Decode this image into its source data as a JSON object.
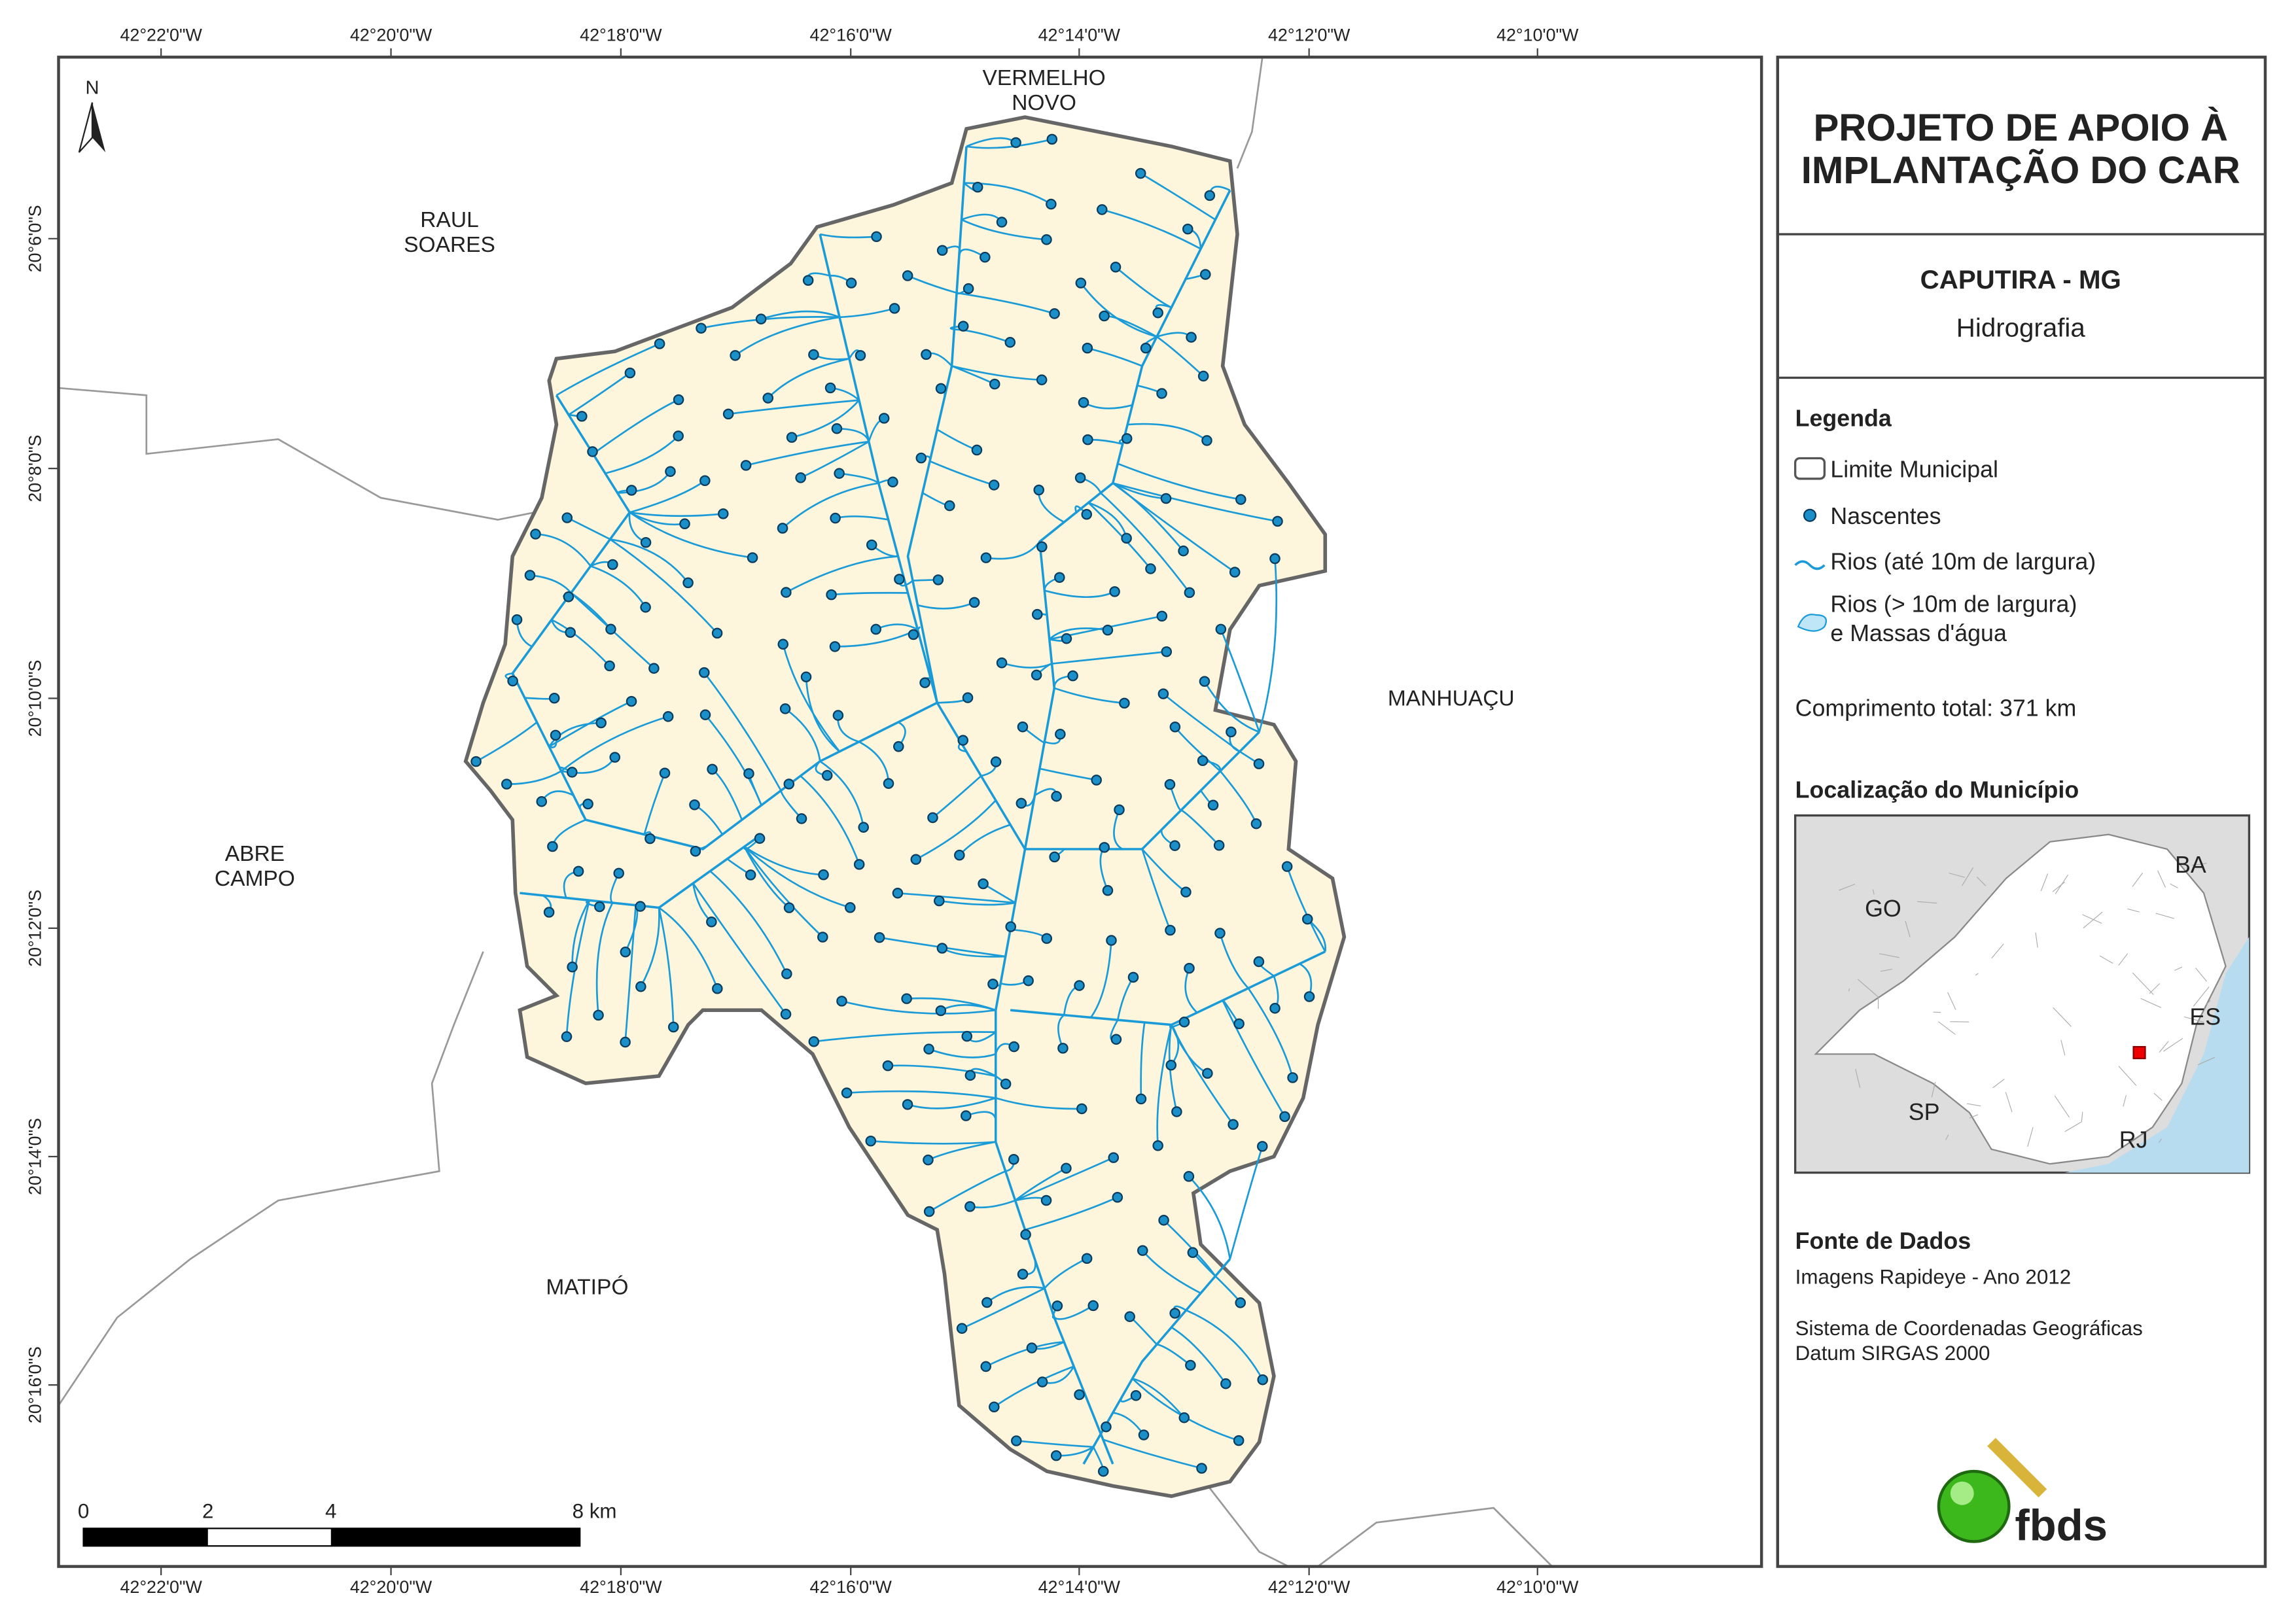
{
  "map": {
    "x_labels": [
      "42°22'0\"W",
      "42°20'0\"W",
      "42°18'0\"W",
      "42°16'0\"W",
      "42°14'0\"W",
      "42°12'0\"W",
      "42°10'0\"W"
    ],
    "y_labels": [
      "20°6'0\"S",
      "20°8'0\"S",
      "20°10'0\"S",
      "20°12'0\"S",
      "20°14'0\"S",
      "20°16'0\"S"
    ],
    "north": "N",
    "places": [
      {
        "lines": [
          "VERMELHO",
          "NOVO"
        ]
      },
      {
        "lines": [
          "RAUL",
          "SOARES"
        ]
      },
      {
        "lines": [
          "ABRE",
          "CAMPO"
        ]
      },
      {
        "lines": [
          "MATIPÓ"
        ]
      },
      {
        "lines": [
          "MANHUAÇU"
        ]
      }
    ],
    "scale_labels": [
      "0",
      "2",
      "4",
      "8 km"
    ]
  },
  "panel": {
    "title_lines": [
      "PROJETO DE APOIO À",
      "IMPLANTAÇÃO DO CAR"
    ],
    "municipality": "CAPUTIRA - MG",
    "theme": "Hidrografia",
    "legend_title": "Legenda",
    "legend_items": [
      {
        "lines": [
          "Limite Municipal"
        ]
      },
      {
        "lines": [
          "Nascentes"
        ]
      },
      {
        "lines": [
          "Rios (até 10m de largura)"
        ]
      },
      {
        "lines": [
          "Rios (> 10m de largura)",
          "e Massas d'água"
        ]
      }
    ],
    "total_length": "Comprimento total:  371 km",
    "location_title": "Localização do Município",
    "inset_labels": [
      "BA",
      "GO",
      "ES",
      "SP",
      "RJ"
    ],
    "source_title": "Fonte de Dados",
    "sources": [
      "Imagens Rapideye - Ano 2012",
      "Sistema de Coordenadas Geográficas",
      "Datum SIRGAS 2000"
    ],
    "logo": "fbds"
  }
}
